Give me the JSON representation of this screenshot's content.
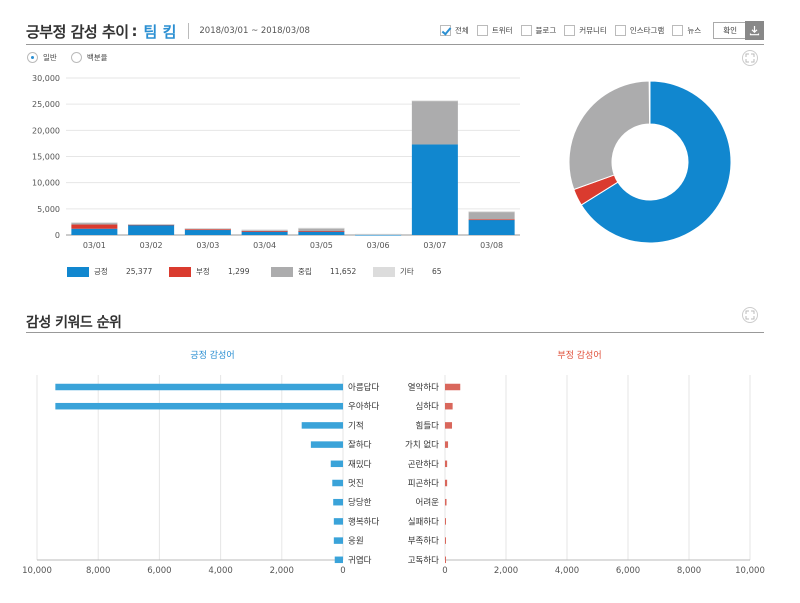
{
  "header": {
    "title": "긍부정 감성 추이",
    "colon": ":",
    "brand": "팀 킴",
    "date_range": "2018/03/01 ~ 2018/03/08"
  },
  "filters": [
    {
      "label": "전체",
      "checked": true
    },
    {
      "label": "트위터",
      "checked": false
    },
    {
      "label": "블로그",
      "checked": false
    },
    {
      "label": "커뮤니티",
      "checked": false
    },
    {
      "label": "인스타그램",
      "checked": false
    },
    {
      "label": "뉴스",
      "checked": false
    }
  ],
  "confirm_label": "확인",
  "view_modes": [
    {
      "label": "일반",
      "selected": true
    },
    {
      "label": "백분율",
      "selected": false
    }
  ],
  "colors": {
    "positive": "#1187cf",
    "negative": "#da3b2f",
    "neutral": "#acacad",
    "other": "#dcdcdc",
    "pos_bar": "#3aa3d9",
    "neg_bar": "#d9675c",
    "brand": "#2b8fd2"
  },
  "legend": [
    {
      "name": "긍정",
      "value": "25,377",
      "color": "#1187cf"
    },
    {
      "name": "부정",
      "value": "1,299",
      "color": "#da3b2f"
    },
    {
      "name": "중립",
      "value": "11,652",
      "color": "#acacad"
    },
    {
      "name": "기타",
      "value": "65",
      "color": "#dcdcdc"
    }
  ],
  "keyword_section": {
    "title": "감성 키워드 순위",
    "positive_title": "긍정 감성어",
    "negative_title": "부정 감성어"
  },
  "chart_data": [
    {
      "type": "bar",
      "stacked": true,
      "categories": [
        "03/01",
        "03/02",
        "03/03",
        "03/04",
        "03/05",
        "03/06",
        "03/07",
        "03/08"
      ],
      "series": [
        {
          "name": "긍정",
          "values": [
            1200,
            1900,
            1050,
            700,
            700,
            50,
            17300,
            2900
          ]
        },
        {
          "name": "부정",
          "values": [
            800,
            100,
            50,
            50,
            50,
            0,
            0,
            100
          ]
        },
        {
          "name": "중립",
          "values": [
            400,
            100,
            200,
            250,
            600,
            150,
            8400,
            1500
          ]
        },
        {
          "name": "기타",
          "values": [
            20,
            5,
            5,
            5,
            5,
            5,
            10,
            10
          ]
        }
      ],
      "ylim": [
        0,
        30000
      ],
      "yticks": [
        "0",
        "5,000",
        "10,000",
        "15,000",
        "20,000",
        "25,000",
        "30,000"
      ],
      "ytick_values": [
        0,
        5000,
        10000,
        15000,
        20000,
        25000,
        30000
      ],
      "grid": true
    },
    {
      "type": "pie",
      "donut": true,
      "labels": [
        "긍정",
        "부정",
        "중립",
        "기타"
      ],
      "values": [
        25377,
        1299,
        11652,
        65
      ]
    },
    {
      "type": "bar",
      "orientation": "horizontal",
      "title": "긍정 감성어",
      "categories": [
        "아름답다",
        "우아하다",
        "기적",
        "잘하다",
        "재밌다",
        "멋진",
        "당당한",
        "행복하다",
        "응원",
        "귀엽다"
      ],
      "values": [
        9400,
        9400,
        1350,
        1050,
        400,
        350,
        320,
        300,
        300,
        270
      ],
      "xlim": [
        0,
        10000
      ],
      "xticks": [
        "10,000",
        "8,000",
        "6,000",
        "4,000",
        "2,000",
        "0"
      ],
      "reversed": true
    },
    {
      "type": "bar",
      "orientation": "horizontal",
      "title": "부정 감성어",
      "categories": [
        "열악하다",
        "심하다",
        "힘들다",
        "가치 없다",
        "곤란하다",
        "피곤하다",
        "어려운",
        "실패하다",
        "부족하다",
        "고독하다"
      ],
      "values": [
        500,
        250,
        230,
        100,
        70,
        70,
        50,
        20,
        20,
        20
      ],
      "xlim": [
        0,
        10000
      ],
      "xticks": [
        "0",
        "2,000",
        "4,000",
        "6,000",
        "8,000",
        "10,000"
      ]
    }
  ]
}
